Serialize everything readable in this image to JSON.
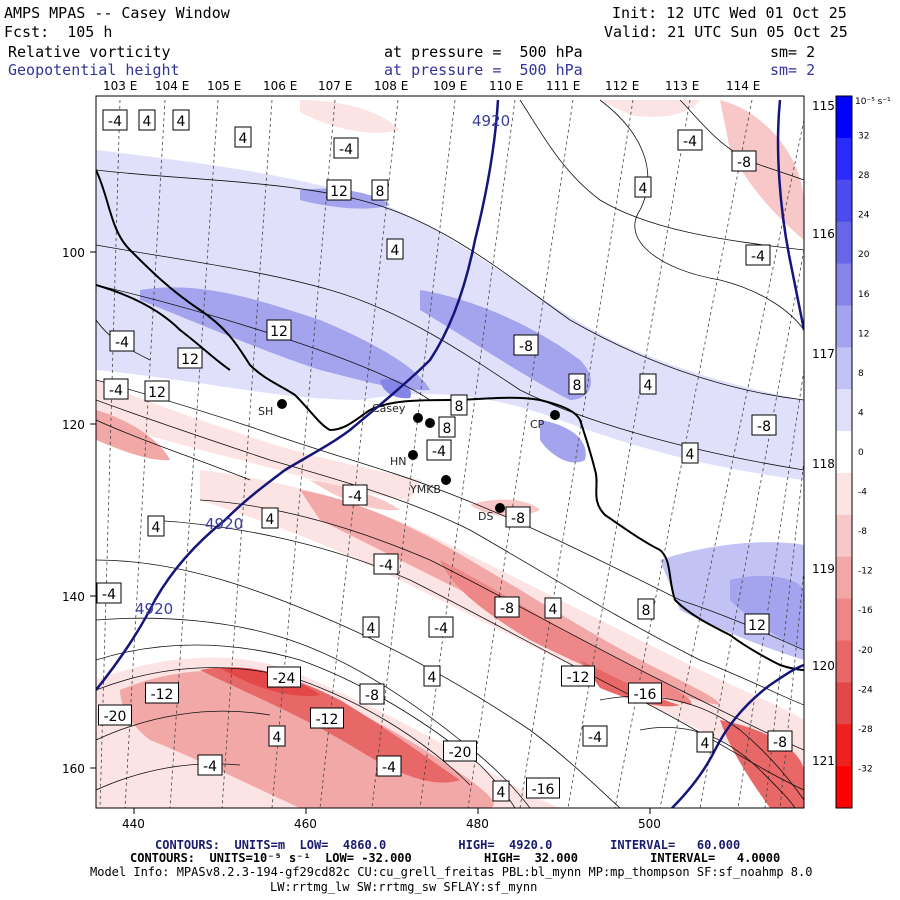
{
  "header": {
    "title": "AMPS MPAS -- Casey Window",
    "forecast": "Fcst:  105 h",
    "init": "Init: 12 UTC Wed 01 Oct 25",
    "valid": "Valid: 21 UTC Sun 05 Oct 25",
    "field1_name": "Relative vorticity",
    "field1_level": "at pressure =  500 hPa",
    "field1_sm": "sm= 2",
    "field2_name": "Geopotential height",
    "field2_level": "at pressure =  500 hPa",
    "field2_sm": "sm= 2"
  },
  "axes": {
    "lon_top": [
      "103 E",
      "104 E",
      "105 E",
      "106 E",
      "107 E",
      "108 E",
      "109 E",
      "110 E",
      "111 E",
      "112 E",
      "113 E",
      "114 E"
    ],
    "lon_right": [
      "115 E",
      "116 E",
      "117 E",
      "118 E",
      "119 E",
      "120 E",
      "121 E"
    ],
    "x_ticks": [
      "440",
      "460",
      "480",
      "500"
    ],
    "y_ticks": [
      "100",
      "120",
      "140",
      "160"
    ]
  },
  "colorbar": {
    "unit": "10⁻⁵ s⁻¹",
    "labels": [
      "32",
      "28",
      "24",
      "20",
      "16",
      "12",
      "8",
      "4",
      "0",
      "-4",
      "-8",
      "-12",
      "-16",
      "-20",
      "-24",
      "-28",
      "-32"
    ],
    "colors": [
      "#0000ff",
      "#2a2aff",
      "#4b4bf0",
      "#6666e6",
      "#8585e8",
      "#a3a3ee",
      "#c2c2f5",
      "#e0e0fb",
      "#ffffff",
      "#fce4e4",
      "#f8c8c8",
      "#f3a8a8",
      "#ee8888",
      "#e86868",
      "#e24848",
      "#f02020",
      "#ff0000"
    ]
  },
  "stations": [
    "SH",
    "Casey",
    "CP",
    "HN",
    "YMKB",
    "DS"
  ],
  "contour_labels": {
    "vorticity": [
      "-4",
      "4",
      "4",
      "4",
      "-4",
      "-4",
      "-8",
      "12",
      "8",
      "4",
      "4",
      "-4",
      "-4",
      "12",
      "12",
      "-8",
      "-4",
      "12",
      "8",
      "4",
      "8",
      "-8",
      "8",
      "-4",
      "4",
      "4",
      "-4",
      "4",
      "-8",
      "-4",
      "-4",
      "-8",
      "4",
      "8",
      "12",
      "4",
      "-4",
      "4",
      "-24",
      "-12",
      "-8",
      "-20",
      "-12",
      "-20",
      "-12",
      "-16",
      "4",
      "-4",
      "-4",
      "4",
      "-16",
      "-4",
      "-8",
      "4"
    ],
    "height": [
      "4920",
      "4920",
      "4920"
    ]
  },
  "footer": {
    "line1": "CONTOURS:  UNITS=m  LOW=  4860.0          HIGH=  4920.0        INTERVAL=   60.000",
    "line2": "CONTOURS:  UNITS=10⁻⁵ s⁻¹  LOW= -32.000          HIGH=  32.000          INTERVAL=   4.0000",
    "line3": "Model Info: MPASv8.2.3-194-gf29cd82c CU:cu_grell_freitas PBL:bl_mynn MP:mp_thompson SF:sf_noahmp 8.0",
    "line4": "LW:rrtmg_lw SW:rrtmg_sw SFLAY:sf_mynn"
  }
}
